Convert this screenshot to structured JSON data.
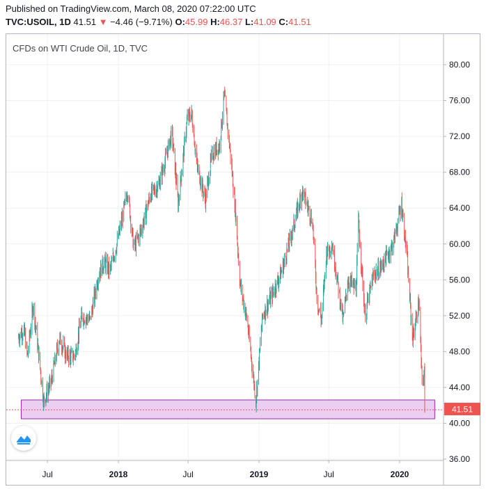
{
  "header": {
    "published": "Published on TradingView.com, March 08, 2020 07:22:00 UTC",
    "symbol": "TVC:USOIL, 1D",
    "last": "41.51",
    "change_arrow": "▼",
    "change": "−4.46 (−9.71%)",
    "o_label": "O:",
    "o_value": "45.99",
    "h_label": "H:",
    "h_value": "46.37",
    "l_label": "L:",
    "l_value": "41.09",
    "c_label": "C:",
    "c_value": "41.51"
  },
  "colors": {
    "up": "#26a69a",
    "down": "#ef5350",
    "zone_fill": "#e8c6ee",
    "zone_stroke": "#9c27b0",
    "grid": "#eef0f3"
  },
  "chart_data": {
    "type": "candlestick",
    "title": "CFDs on WTI Crude Oil, 1D, TVC",
    "price_label": "41.51",
    "ylim": [
      36,
      84
    ],
    "y_ticks": [
      "80.00",
      "76.00",
      "72.00",
      "68.00",
      "64.00",
      "60.00",
      "56.00",
      "52.00",
      "48.00",
      "44.00",
      "40.00",
      "36.00"
    ],
    "x_ticks": [
      "Jul",
      "2018",
      "Jul",
      "2019",
      "Jul",
      "2020"
    ],
    "x_ticks_bold": [
      false,
      true,
      false,
      true,
      false,
      true
    ],
    "support_zone": {
      "low": 40.5,
      "high": 42.6
    },
    "support_line": 41.5,
    "price_path": [
      [
        "2017-04-15",
        49.5
      ],
      [
        "2017-05-01",
        50.5
      ],
      [
        "2017-05-10",
        47.5
      ],
      [
        "2017-05-25",
        53.2
      ],
      [
        "2017-06-10",
        47.0
      ],
      [
        "2017-06-21",
        42.5
      ],
      [
        "2017-07-10",
        44.5
      ],
      [
        "2017-08-01",
        49.5
      ],
      [
        "2017-08-20",
        47.5
      ],
      [
        "2017-09-10",
        47.5
      ],
      [
        "2017-09-28",
        52.0
      ],
      [
        "2017-10-20",
        51.5
      ],
      [
        "2017-11-10",
        56.5
      ],
      [
        "2017-11-25",
        58.0
      ],
      [
        "2017-12-10",
        57.0
      ],
      [
        "2017-12-31",
        60.5
      ],
      [
        "2018-01-25",
        66.0
      ],
      [
        "2018-02-10",
        59.5
      ],
      [
        "2018-03-01",
        61.5
      ],
      [
        "2018-03-25",
        65.5
      ],
      [
        "2018-04-15",
        66.5
      ],
      [
        "2018-05-01",
        69.0
      ],
      [
        "2018-05-20",
        72.5
      ],
      [
        "2018-06-05",
        64.5
      ],
      [
        "2018-06-29",
        74.0
      ],
      [
        "2018-07-10",
        74.5
      ],
      [
        "2018-07-25",
        68.5
      ],
      [
        "2018-08-15",
        65.0
      ],
      [
        "2018-09-01",
        70.0
      ],
      [
        "2018-09-20",
        71.0
      ],
      [
        "2018-10-03",
        76.5
      ],
      [
        "2018-10-20",
        69.5
      ],
      [
        "2018-11-01",
        63.5
      ],
      [
        "2018-11-13",
        55.5
      ],
      [
        "2018-12-01",
        51.5
      ],
      [
        "2018-12-24",
        42.5
      ],
      [
        "2019-01-10",
        52.0
      ],
      [
        "2019-02-01",
        54.0
      ],
      [
        "2019-03-01",
        57.0
      ],
      [
        "2019-04-01",
        62.0
      ],
      [
        "2019-04-23",
        66.0
      ],
      [
        "2019-05-20",
        62.5
      ],
      [
        "2019-06-01",
        53.5
      ],
      [
        "2019-06-12",
        51.5
      ],
      [
        "2019-06-25",
        59.0
      ],
      [
        "2019-07-10",
        60.0
      ],
      [
        "2019-08-07",
        51.5
      ],
      [
        "2019-08-20",
        56.0
      ],
      [
        "2019-09-10",
        55.0
      ],
      [
        "2019-09-16",
        62.5
      ],
      [
        "2019-10-03",
        52.0
      ],
      [
        "2019-10-25",
        56.5
      ],
      [
        "2019-11-15",
        57.5
      ],
      [
        "2019-12-15",
        60.0
      ],
      [
        "2020-01-06",
        64.5
      ],
      [
        "2020-01-20",
        58.5
      ],
      [
        "2020-01-31",
        51.5
      ],
      [
        "2020-02-04",
        49.5
      ],
      [
        "2020-02-20",
        53.5
      ],
      [
        "2020-02-28",
        44.5
      ],
      [
        "2020-03-05",
        45.5
      ],
      [
        "2020-03-06",
        41.5
      ]
    ]
  }
}
